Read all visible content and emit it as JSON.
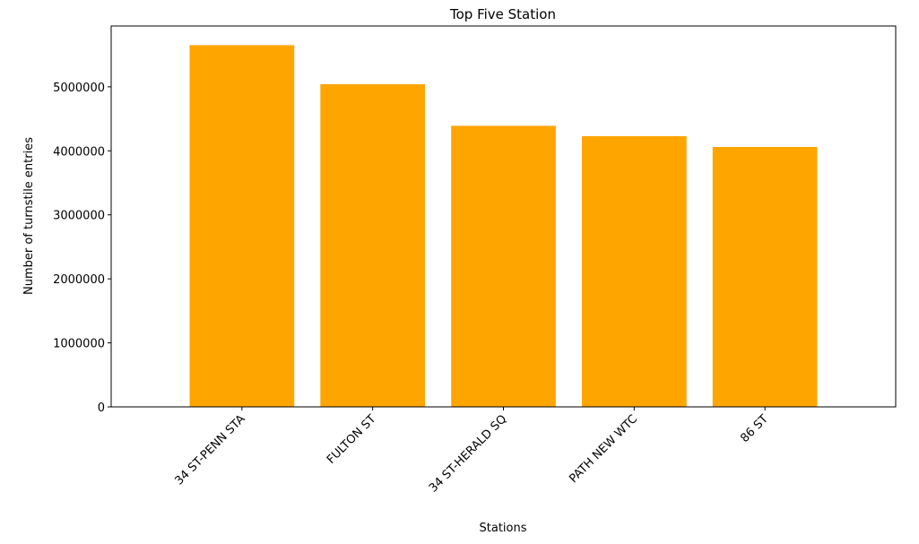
{
  "chart_data": {
    "type": "bar",
    "title": "Top Five Station",
    "xlabel": "Stations",
    "ylabel": "Number of turnstile entries",
    "categories": [
      "34 ST-PENN STA",
      "FULTON ST",
      "34 ST-HERALD SQ",
      "PATH NEW WTC",
      "86 ST"
    ],
    "values": [
      5650000,
      5040000,
      4390000,
      4230000,
      4060000
    ],
    "ylim": [
      0,
      5950000
    ],
    "yticks": [
      0,
      1000000,
      2000000,
      3000000,
      4000000,
      5000000
    ],
    "ytick_labels": [
      "0",
      "1000000",
      "2000000",
      "3000000",
      "4000000",
      "5000000"
    ],
    "bar_color": "#FFA500",
    "grid": false,
    "xtick_rotation_deg": -45
  }
}
